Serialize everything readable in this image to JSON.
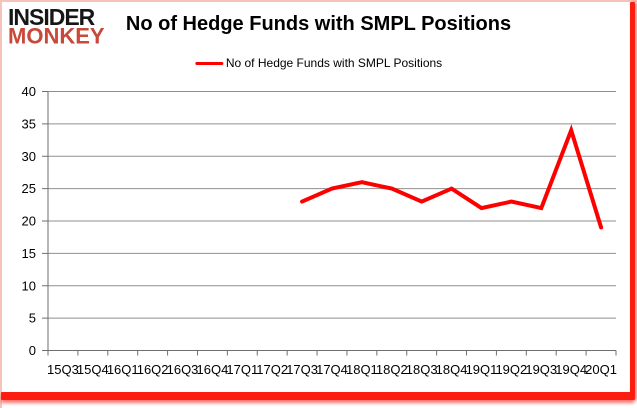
{
  "header": {
    "title": "No of Hedge Funds with SMPL Positions"
  },
  "brand": {
    "line1": "INSIDER",
    "line2": "MONKEY"
  },
  "legend": {
    "label": "No of Hedge Funds with SMPL Positions"
  },
  "colors": {
    "series_red": "#fe0000",
    "grid": "#8f8f8f",
    "axis": "#6e6e6e",
    "text": "#000000",
    "brand_black": "#161616",
    "brand_red": "#c8483a",
    "border_pink": "#f6c3ba",
    "border_red": "#fa1d10"
  },
  "chart_data": {
    "type": "line",
    "title": "No of Hedge Funds with SMPL Positions",
    "xlabel": "",
    "ylabel": "",
    "categories": [
      "15Q3",
      "15Q4",
      "16Q1",
      "16Q2",
      "16Q3",
      "16Q4",
      "17Q1",
      "17Q2",
      "17Q3",
      "17Q4",
      "18Q1",
      "18Q2",
      "18Q3",
      "18Q4",
      "19Q1",
      "19Q2",
      "19Q3",
      "19Q4",
      "20Q1"
    ],
    "series": [
      {
        "name": "No of Hedge Funds with SMPL Positions",
        "color": "#fe0000",
        "values": [
          null,
          null,
          null,
          null,
          null,
          null,
          null,
          null,
          23,
          25,
          26,
          25,
          23,
          25,
          22,
          23,
          22,
          34,
          19
        ]
      }
    ],
    "ylim": [
      0,
      40
    ],
    "yticks": [
      0,
      5,
      10,
      15,
      20,
      25,
      30,
      35,
      40
    ],
    "grid": true,
    "legend_position": "top"
  }
}
